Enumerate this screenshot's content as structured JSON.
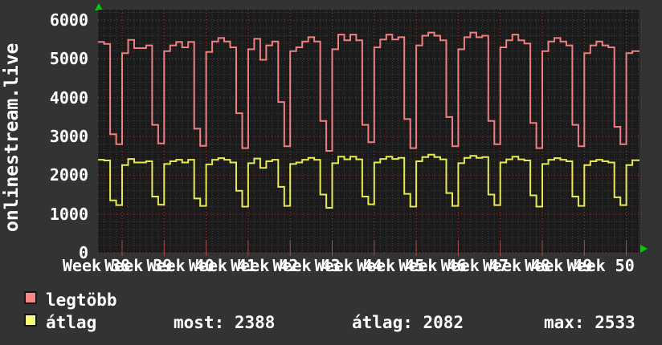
{
  "page_background": "#333333",
  "chart_data": {
    "type": "line",
    "style": "step-after",
    "title": "",
    "xlabel": "",
    "ylabel": "onlinestream.live",
    "ylim": [
      0,
      6273
    ],
    "y_major_step": 1000,
    "y_minor_step": 200,
    "y_tick_labels": [
      "0",
      "1000",
      "2000",
      "3000",
      "4000",
      "5000",
      "6000"
    ],
    "x_tick_labels": [
      "Week 38",
      "Week 39",
      "Week 40",
      "Week 41",
      "Week 42",
      "Week 43",
      "Week 44",
      "Week 45",
      "Week 46",
      "Week 47",
      "Week 48",
      "Week 49",
      "Week 50"
    ],
    "x_unit": "days",
    "x_range_days": [
      -4.02,
      86.19
    ],
    "x_week_tick_step_days": 7,
    "grid": {
      "on": true,
      "background": "#1b1b1b",
      "minor_color": "#3e3e3e",
      "major_color": "#8f4343",
      "tick_color": "#b34d4d"
    },
    "axis_arrow_color": "#00cc00",
    "legend_position": "bottom-left",
    "series": [
      {
        "name": "legtöbb",
        "color": "#f08080",
        "start_day": -4,
        "days_per_point": 1,
        "values": [
          5440,
          5390,
          3060,
          2800,
          5150,
          5490,
          5280,
          5280,
          5350,
          3300,
          2820,
          5200,
          5350,
          5440,
          5300,
          5440,
          3200,
          2760,
          5180,
          5450,
          5540,
          5450,
          5300,
          3600,
          2700,
          5250,
          5520,
          4980,
          5350,
          5450,
          3890,
          2750,
          5200,
          5300,
          5450,
          5560,
          5450,
          3400,
          2630,
          5250,
          5630,
          5480,
          5630,
          5480,
          3300,
          2850,
          5300,
          5500,
          5630,
          5500,
          5560,
          3450,
          2700,
          5350,
          5600,
          5680,
          5600,
          5480,
          3500,
          2750,
          5250,
          5560,
          5680,
          5560,
          5600,
          3400,
          2800,
          5300,
          5480,
          5630,
          5480,
          5400,
          3350,
          2700,
          5200,
          5450,
          5540,
          5450,
          5350,
          3300,
          2750,
          5150,
          5350,
          5450,
          5350,
          5300,
          3250,
          2800,
          5150,
          5200,
          5200
        ]
      },
      {
        "name": "átlag",
        "color": "#e9e950",
        "start_day": -4,
        "days_per_point": 1,
        "values": [
          2400,
          2380,
          1350,
          1230,
          2260,
          2420,
          2330,
          2330,
          2360,
          1450,
          1240,
          2290,
          2360,
          2400,
          2330,
          2400,
          1400,
          1210,
          2280,
          2400,
          2440,
          2400,
          2330,
          1600,
          1190,
          2310,
          2430,
          2190,
          2360,
          2400,
          1700,
          1210,
          2290,
          2330,
          2400,
          2450,
          2400,
          1500,
          1160,
          2310,
          2480,
          2410,
          2480,
          2410,
          1450,
          1250,
          2330,
          2420,
          2480,
          2420,
          2450,
          1520,
          1190,
          2360,
          2470,
          2533,
          2470,
          2410,
          1540,
          1210,
          2310,
          2450,
          2500,
          2450,
          2470,
          1500,
          1230,
          2330,
          2410,
          2480,
          2410,
          2380,
          1480,
          1190,
          2290,
          2400,
          2440,
          2400,
          2360,
          1450,
          1210,
          2260,
          2360,
          2400,
          2360,
          2330,
          1430,
          1230,
          2260,
          2388,
          2388
        ]
      }
    ],
    "stats": {
      "most": 2388,
      "átlag": 2082,
      "max": 2533
    }
  },
  "legend": [
    {
      "label": "legtöbb",
      "color": "#f48888"
    },
    {
      "label": "átlag",
      "color": "#f8f87c"
    }
  ],
  "stats_display": {
    "most": "most: 2388",
    "atlag": "átlag: 2082",
    "max": "max: 2533"
  }
}
